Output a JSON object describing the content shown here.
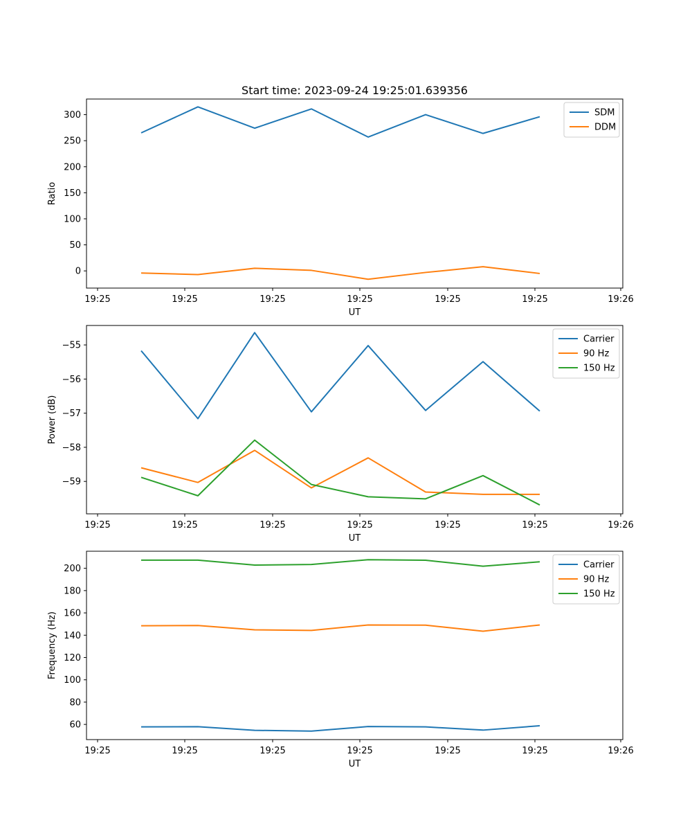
{
  "chart_data": [
    {
      "type": "line",
      "title": "Start time: 2023-09-24 19:25:01.639356",
      "xlabel": "UT",
      "ylabel": "Ratio",
      "x_tick_labels": [
        "19:25",
        "19:25",
        "19:25",
        "19:25",
        "19:25",
        "19:25",
        "19:25",
        "19:26"
      ],
      "y_ticks": [
        0,
        50,
        100,
        150,
        200,
        250,
        300
      ],
      "ylim": [
        -33,
        330
      ],
      "legend": "top-right",
      "series": [
        {
          "name": "SDM",
          "color": "#1f77b4",
          "values": [
            265,
            315,
            274,
            311,
            257,
            300,
            264,
            296
          ]
        },
        {
          "name": "DDM",
          "color": "#ff7f0e",
          "values": [
            -4,
            -7,
            5,
            1,
            -16,
            -3,
            8,
            -5
          ]
        }
      ]
    },
    {
      "type": "line",
      "title": "",
      "xlabel": "UT",
      "ylabel": "Power (dB)",
      "x_tick_labels": [
        "19:25",
        "19:25",
        "19:25",
        "19:25",
        "19:25",
        "19:25",
        "19:25",
        "19:26"
      ],
      "y_ticks": [
        -55,
        -56,
        -57,
        -58,
        -59
      ],
      "ylim": [
        -59.95,
        -54.43
      ],
      "legend": "top-right",
      "series": [
        {
          "name": "Carrier",
          "color": "#1f77b4",
          "values": [
            -55.17,
            -57.16,
            -54.64,
            -56.96,
            -55.02,
            -56.92,
            -55.49,
            -56.94
          ]
        },
        {
          "name": "90 Hz",
          "color": "#ff7f0e",
          "values": [
            -58.6,
            -59.03,
            -58.09,
            -59.19,
            -58.31,
            -59.31,
            -59.38,
            -59.38
          ]
        },
        {
          "name": "150 Hz",
          "color": "#2ca02c",
          "values": [
            -58.88,
            -59.42,
            -57.79,
            -59.09,
            -59.45,
            -59.51,
            -58.83,
            -59.69
          ]
        }
      ]
    },
    {
      "type": "line",
      "title": "",
      "xlabel": "UT",
      "ylabel": "Frequency (Hz)",
      "x_tick_labels": [
        "19:25",
        "19:25",
        "19:25",
        "19:25",
        "19:25",
        "19:25",
        "19:25",
        "19:26"
      ],
      "y_ticks": [
        60,
        80,
        100,
        120,
        140,
        160,
        180,
        200
      ],
      "ylim": [
        46.4,
        215.3
      ],
      "legend": "top-right",
      "series": [
        {
          "name": "Carrier",
          "color": "#1f77b4",
          "values": [
            57.8,
            58.0,
            54.7,
            54.0,
            58.1,
            57.8,
            54.9,
            58.8
          ]
        },
        {
          "name": "90 Hz",
          "color": "#ff7f0e",
          "values": [
            148.5,
            148.7,
            144.8,
            144.3,
            149.2,
            149.0,
            143.6,
            149.2
          ]
        },
        {
          "name": "150 Hz",
          "color": "#2ca02c",
          "values": [
            207.3,
            207.3,
            202.9,
            203.4,
            207.7,
            207.2,
            201.9,
            205.8
          ]
        }
      ]
    }
  ]
}
